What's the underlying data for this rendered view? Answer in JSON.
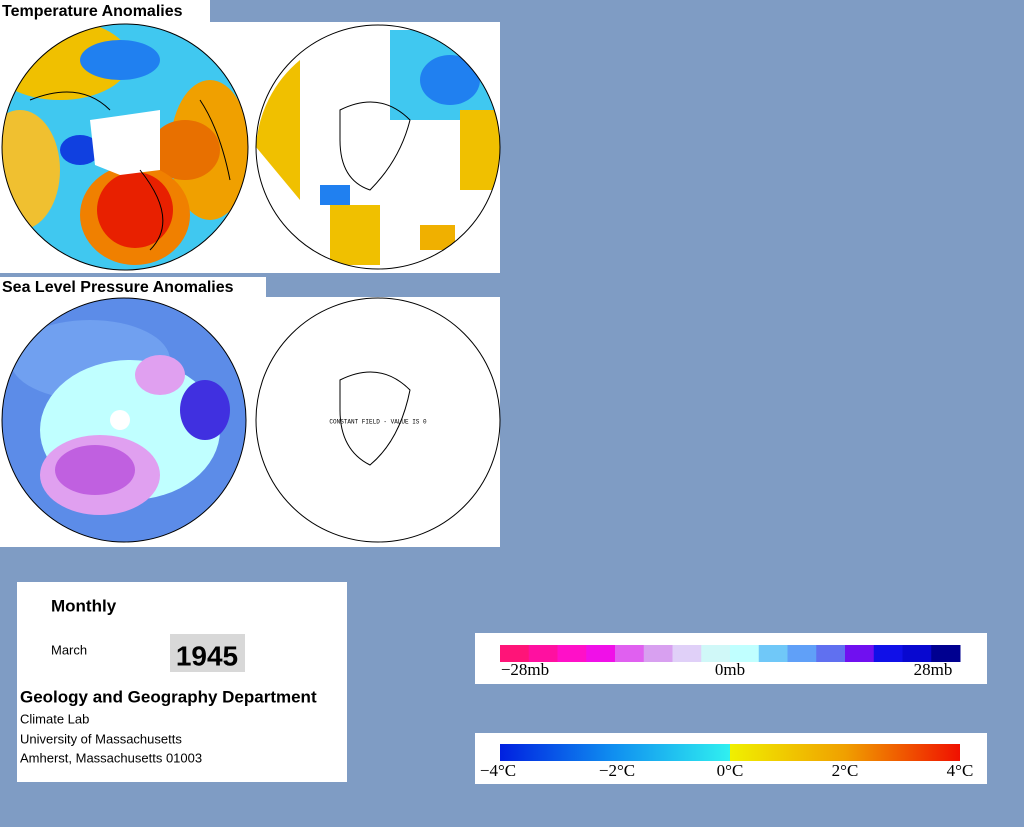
{
  "panels": {
    "temperature": {
      "title": "Temperature Anomalies"
    },
    "pressure": {
      "title": "Sea Level Pressure Anomalies",
      "note": "CONSTANT FIELD - VALUE IS 0"
    }
  },
  "info": {
    "period": "Monthly",
    "month": "March",
    "year": "1945",
    "department": "Geology and Geography Department",
    "lines": [
      "Climate Lab",
      "University of Massachusetts",
      "Amherst, Massachusetts 01003"
    ]
  },
  "legends": {
    "pressure": {
      "labels": [
        "−28mb",
        "0mb",
        "28mb"
      ]
    },
    "temperature": {
      "labels": [
        "−4°C",
        "−2°C",
        "0°C",
        "2°C",
        "4°C"
      ]
    }
  }
}
